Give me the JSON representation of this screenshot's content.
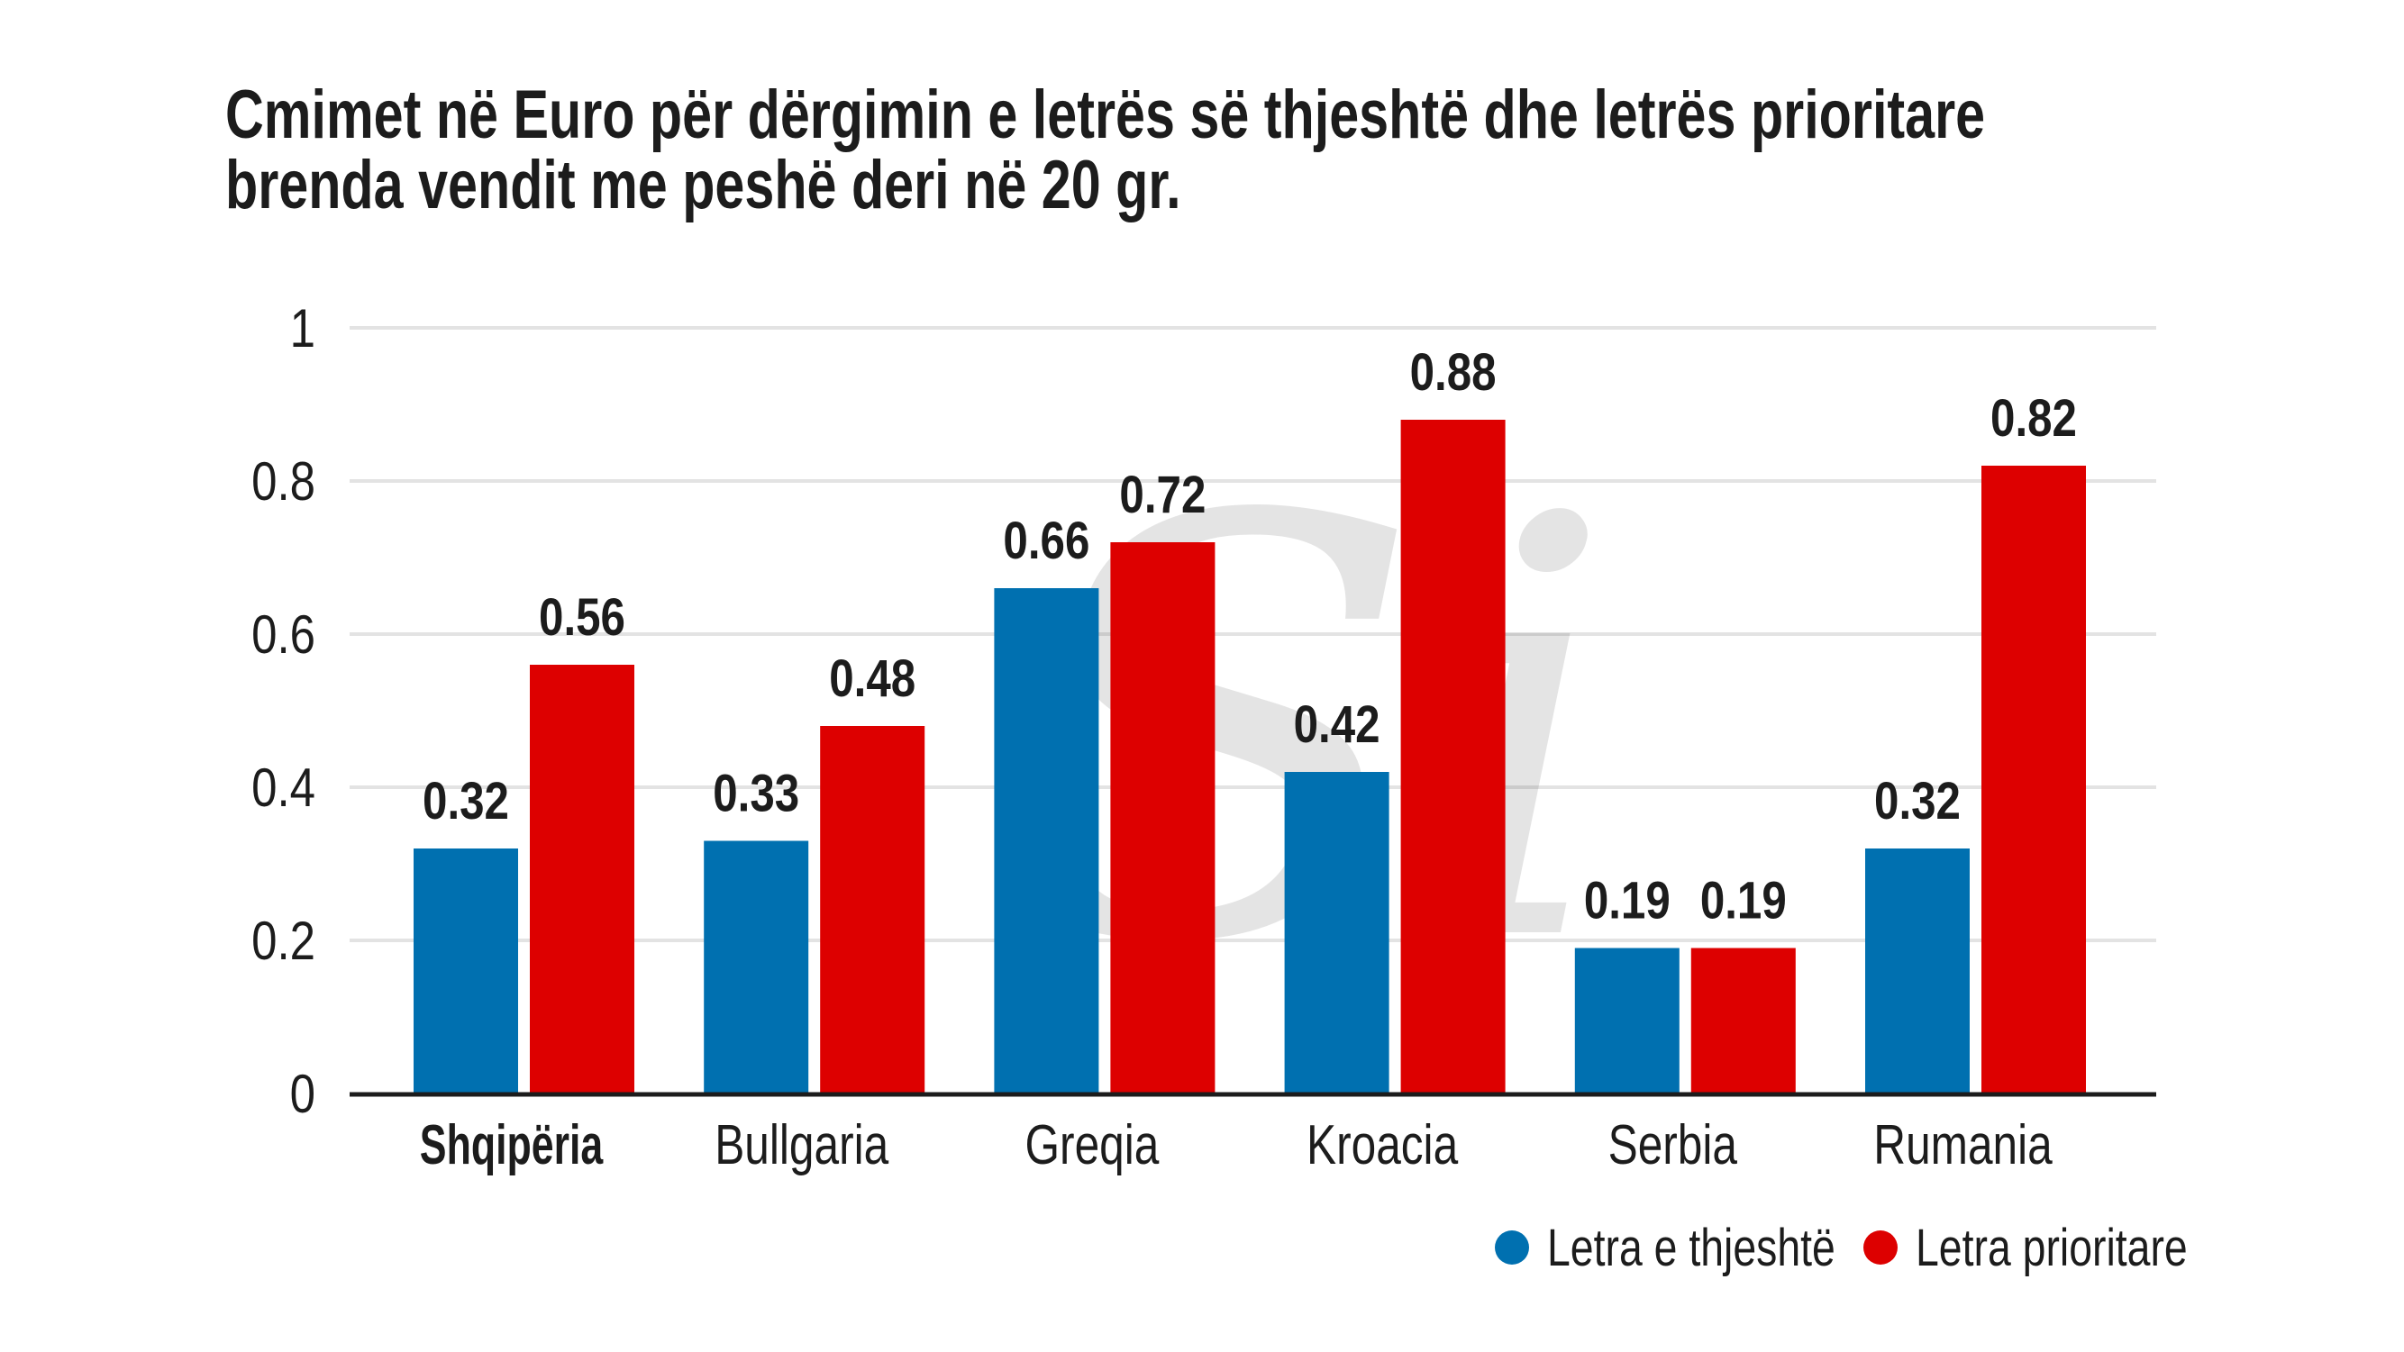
{
  "chart_data": {
    "type": "bar",
    "title": [
      "Cmimet në Euro për dërgimin e  letrës së thjeshtë dhe letrës prioritare",
      "brenda vendit me peshë deri në 20 gr."
    ],
    "xlabel": "",
    "ylabel": "",
    "categories": [
      "Shqipëria",
      "Bullgaria",
      "Greqia",
      "Kroacia",
      "Serbia",
      "Rumania"
    ],
    "highlight_category": "Shqipëria",
    "series": [
      {
        "name": "Letra e thjeshtë",
        "color": "#0070b0",
        "values": [
          0.32,
          0.33,
          0.66,
          0.42,
          0.19,
          0.32
        ],
        "labels": [
          "0.32",
          "0.33",
          "0.66",
          "0.42",
          "0.19",
          "0.32"
        ]
      },
      {
        "name": "Letra prioritare",
        "color": "#dd0000",
        "values": [
          0.56,
          0.48,
          0.72,
          0.88,
          0.19,
          0.82
        ],
        "labels": [
          "0.56",
          "0.48",
          "0.72",
          "0.88",
          "0.19",
          "0.82"
        ]
      }
    ],
    "ylim": [
      0,
      1
    ],
    "yticks": [
      0,
      0.2,
      0.4,
      0.6,
      0.8,
      1
    ],
    "ytick_labels": [
      "0",
      "0.2",
      "0.4",
      "0.6",
      "0.8",
      "1"
    ],
    "grid": true,
    "legend_position": "bottom-right",
    "watermark": "Si"
  }
}
